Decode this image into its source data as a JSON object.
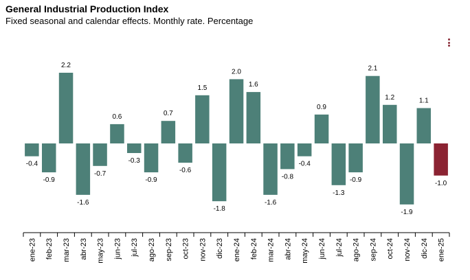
{
  "header": {
    "title": "General Industrial Production Index",
    "subtitle": "Fixed seasonal and calendar effects. Monthly rate. Percentage"
  },
  "menu": {
    "icon": "vertical-dots-menu-icon"
  },
  "colors": {
    "bar": "#4d8078",
    "highlight": "#8b2332",
    "axis": "#000000",
    "menu": "#8b2d3a"
  },
  "chart_data": {
    "type": "bar",
    "title": "General Industrial Production Index",
    "subtitle": "Fixed seasonal and calendar effects. Monthly rate. Percentage",
    "xlabel": "",
    "ylabel": "",
    "ylim": [
      -2.2,
      2.6
    ],
    "highlight_category": "ene-25",
    "categories": [
      "ene-23",
      "feb-23",
      "mar-23",
      "abr-23",
      "may-23",
      "jun-23",
      "jul-23",
      "ago-23",
      "sep-23",
      "oct-23",
      "nov-23",
      "dic-23",
      "ene-24",
      "feb-24",
      "mar-24",
      "abr-24",
      "may-24",
      "jun-24",
      "jul-24",
      "ago-24",
      "sep-24",
      "oct-24",
      "nov-24",
      "dic-24",
      "ene-25"
    ],
    "values": [
      -0.4,
      -0.9,
      2.2,
      -1.6,
      -0.7,
      0.6,
      -0.3,
      -0.9,
      0.7,
      -0.6,
      1.5,
      -1.8,
      2.0,
      1.6,
      -1.6,
      -0.8,
      -0.4,
      0.9,
      -1.3,
      -0.9,
      2.1,
      1.2,
      -1.9,
      1.1,
      -1.0
    ],
    "value_labels": [
      "-0.4",
      "-0.9",
      "2.2",
      "-1.6",
      "-0.7",
      "0.6",
      "-0.3",
      "-0.9",
      "0.7",
      "-0.6",
      "1.5",
      "-1.8",
      "2.0",
      "1.6",
      "-1.6",
      "-0.8",
      "-0.4",
      "0.9",
      "-1.3",
      "-0.9",
      "2.1",
      "1.2",
      "-1.9",
      "1.1",
      "-1.0"
    ]
  }
}
